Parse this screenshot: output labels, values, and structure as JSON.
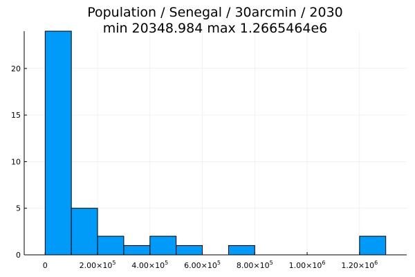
{
  "chart_data": {
    "type": "bar",
    "title": "Population / Senegal / 30arcmin / 2030",
    "subtitle": "min 20348.984  max 1.2665464e6",
    "xlabel": "",
    "ylabel": "",
    "grid": true,
    "bin_width": 100000,
    "bins": [
      {
        "x0": 0,
        "x1": 100000,
        "count": 24
      },
      {
        "x0": 100000,
        "x1": 200000,
        "count": 5
      },
      {
        "x0": 200000,
        "x1": 300000,
        "count": 2
      },
      {
        "x0": 300000,
        "x1": 400000,
        "count": 1
      },
      {
        "x0": 400000,
        "x1": 500000,
        "count": 2
      },
      {
        "x0": 500000,
        "x1": 600000,
        "count": 1
      },
      {
        "x0": 700000,
        "x1": 800000,
        "count": 1
      },
      {
        "x0": 1200000,
        "x1": 1300000,
        "count": 2
      }
    ],
    "xlim": [
      -80000,
      1380000
    ],
    "ylim": [
      0,
      24
    ],
    "x_ticks": [
      {
        "value": 0,
        "label": "0"
      },
      {
        "value": 200000,
        "label": "2.00×10",
        "exp": "5"
      },
      {
        "value": 400000,
        "label": "4.00×10",
        "exp": "5"
      },
      {
        "value": 600000,
        "label": "6.00×10",
        "exp": "5"
      },
      {
        "value": 800000,
        "label": "8.00×10",
        "exp": "5"
      },
      {
        "value": 1000000,
        "label": "1.00×10",
        "exp": "6"
      },
      {
        "value": 1200000,
        "label": "1.20×10",
        "exp": "6"
      }
    ],
    "y_ticks": [
      {
        "value": 0,
        "label": "0"
      },
      {
        "value": 5,
        "label": "5"
      },
      {
        "value": 10,
        "label": "10"
      },
      {
        "value": 15,
        "label": "15"
      },
      {
        "value": 20,
        "label": "20"
      }
    ],
    "colors": {
      "bar": "#009af9",
      "edge": "#000000"
    }
  }
}
